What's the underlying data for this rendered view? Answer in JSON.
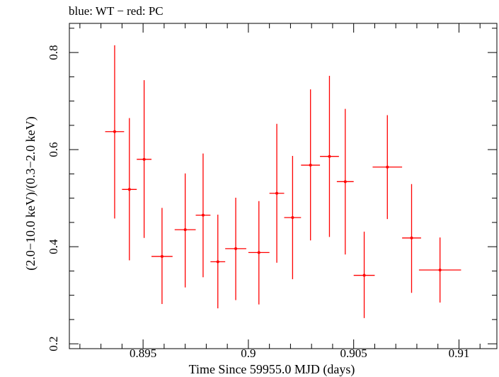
{
  "chart_data": {
    "type": "scatter",
    "title": "blue: WT − red: PC",
    "xlabel": "Time Since 59955.0 MJD (days)",
    "ylabel": "(2.0−10.0 keV)/(0.3−2.0 keV)",
    "xlim": [
      0.8915,
      0.9118
    ],
    "ylim": [
      0.19,
      0.86
    ],
    "xticks": [
      0.895,
      0.9,
      0.905,
      0.91
    ],
    "xtick_labels": [
      "0.895",
      "0.9",
      "0.905",
      "0.91"
    ],
    "yticks": [
      0.2,
      0.4,
      0.6,
      0.8
    ],
    "ytick_labels": [
      "0.2",
      "0.4",
      "0.6",
      "0.8"
    ],
    "grid": false,
    "series": [
      {
        "color": "#ff0000",
        "points": [
          {
            "x": 0.89365,
            "xerr": 0.00045,
            "y": 0.637,
            "ylo": 0.458,
            "yhi": 0.815
          },
          {
            "x": 0.89435,
            "xerr": 0.00035,
            "y": 0.518,
            "ylo": 0.372,
            "yhi": 0.665
          },
          {
            "x": 0.89505,
            "xerr": 0.00035,
            "y": 0.58,
            "ylo": 0.418,
            "yhi": 0.743
          },
          {
            "x": 0.8959,
            "xerr": 0.0005,
            "y": 0.38,
            "ylo": 0.282,
            "yhi": 0.48
          },
          {
            "x": 0.897,
            "xerr": 0.0005,
            "y": 0.435,
            "ylo": 0.316,
            "yhi": 0.551
          },
          {
            "x": 0.89785,
            "xerr": 0.00035,
            "y": 0.465,
            "ylo": 0.337,
            "yhi": 0.592
          },
          {
            "x": 0.89855,
            "xerr": 0.00035,
            "y": 0.369,
            "ylo": 0.273,
            "yhi": 0.466
          },
          {
            "x": 0.8994,
            "xerr": 0.0005,
            "y": 0.396,
            "ylo": 0.29,
            "yhi": 0.501
          },
          {
            "x": 0.9005,
            "xerr": 0.0005,
            "y": 0.388,
            "ylo": 0.281,
            "yhi": 0.494
          },
          {
            "x": 0.90135,
            "xerr": 0.00035,
            "y": 0.51,
            "ylo": 0.367,
            "yhi": 0.653
          },
          {
            "x": 0.9021,
            "xerr": 0.0004,
            "y": 0.46,
            "ylo": 0.333,
            "yhi": 0.587
          },
          {
            "x": 0.90295,
            "xerr": 0.00045,
            "y": 0.568,
            "ylo": 0.413,
            "yhi": 0.724
          },
          {
            "x": 0.90385,
            "xerr": 0.00045,
            "y": 0.586,
            "ylo": 0.42,
            "yhi": 0.752
          },
          {
            "x": 0.9046,
            "xerr": 0.0004,
            "y": 0.534,
            "ylo": 0.384,
            "yhi": 0.684
          },
          {
            "x": 0.9055,
            "xerr": 0.0005,
            "y": 0.341,
            "ylo": 0.253,
            "yhi": 0.431
          },
          {
            "x": 0.9066,
            "xerr": 0.0007,
            "y": 0.564,
            "ylo": 0.457,
            "yhi": 0.671
          },
          {
            "x": 0.90775,
            "xerr": 0.00045,
            "y": 0.418,
            "ylo": 0.305,
            "yhi": 0.529
          },
          {
            "x": 0.9091,
            "xerr": 0.001,
            "y": 0.352,
            "ylo": 0.285,
            "yhi": 0.419
          }
        ]
      }
    ]
  }
}
